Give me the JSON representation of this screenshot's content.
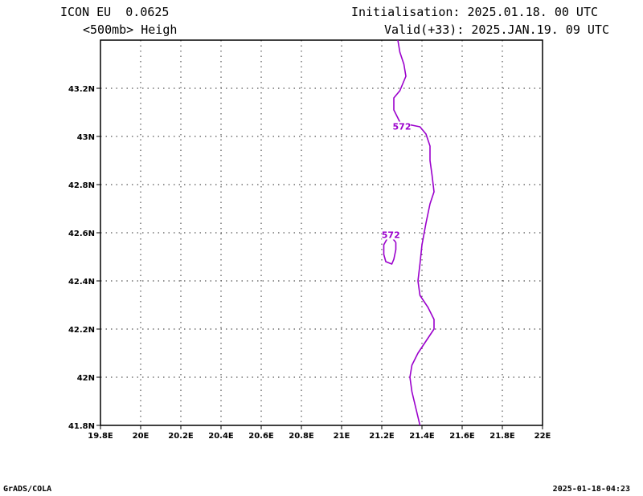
{
  "header": {
    "model": "ICON EU  0.0625",
    "variable": "<500mb> Heigh",
    "init": "Initialisation: 2025.01.18. 00 UTC",
    "valid": "Valid(+33): 2025.JAN.19. 09 UTC"
  },
  "footer": {
    "left": "GrADS/COLA",
    "right": "2025-01-18-04:23"
  },
  "chart_data": {
    "type": "line",
    "title": "",
    "xlabel": "",
    "ylabel": "",
    "xlim": [
      19.8,
      22.0
    ],
    "ylim": [
      41.8,
      43.4
    ],
    "grid": true,
    "x_ticks": [
      "19.8E",
      "20E",
      "20.2E",
      "20.4E",
      "20.6E",
      "20.8E",
      "21E",
      "21.2E",
      "21.4E",
      "21.6E",
      "21.8E",
      "22E"
    ],
    "y_ticks": [
      "41.8N",
      "42N",
      "42.2N",
      "42.4N",
      "42.6N",
      "42.8N",
      "43N",
      "43.2N"
    ],
    "contour_color": "#9b00cc",
    "series": [
      {
        "name": "572",
        "label": "572",
        "label_at": [
          21.3,
          43.035
        ],
        "points": [
          [
            21.39,
            41.8
          ],
          [
            21.37,
            41.87
          ],
          [
            21.35,
            41.94
          ],
          [
            21.34,
            42.0
          ],
          [
            21.35,
            42.05
          ],
          [
            21.38,
            42.1
          ],
          [
            21.42,
            42.15
          ],
          [
            21.46,
            42.2
          ],
          [
            21.46,
            42.24
          ],
          [
            21.43,
            42.29
          ],
          [
            21.39,
            42.34
          ],
          [
            21.38,
            42.4
          ],
          [
            21.39,
            42.47
          ],
          [
            21.4,
            42.55
          ],
          [
            21.42,
            42.64
          ],
          [
            21.44,
            42.72
          ],
          [
            21.46,
            42.77
          ],
          [
            21.45,
            42.84
          ],
          [
            21.44,
            42.9
          ],
          [
            21.44,
            42.96
          ],
          [
            21.42,
            43.01
          ],
          [
            21.39,
            43.04
          ],
          [
            21.33,
            43.05
          ],
          [
            21.29,
            43.06
          ],
          [
            21.26,
            43.11
          ],
          [
            21.26,
            43.16
          ],
          [
            21.29,
            43.19
          ],
          [
            21.32,
            43.25
          ],
          [
            21.31,
            43.3
          ],
          [
            21.29,
            43.35
          ],
          [
            21.28,
            43.4
          ]
        ]
      },
      {
        "name": "572 (closed)",
        "label": "572",
        "label_at": [
          21.245,
          42.585
        ],
        "points": [
          [
            21.27,
            42.56
          ],
          [
            21.27,
            42.53
          ],
          [
            21.26,
            42.49
          ],
          [
            21.25,
            42.47
          ],
          [
            21.22,
            42.48
          ],
          [
            21.21,
            42.51
          ],
          [
            21.21,
            42.55
          ],
          [
            21.23,
            42.58
          ],
          [
            21.25,
            42.58
          ],
          [
            21.27,
            42.56
          ]
        ]
      }
    ]
  }
}
